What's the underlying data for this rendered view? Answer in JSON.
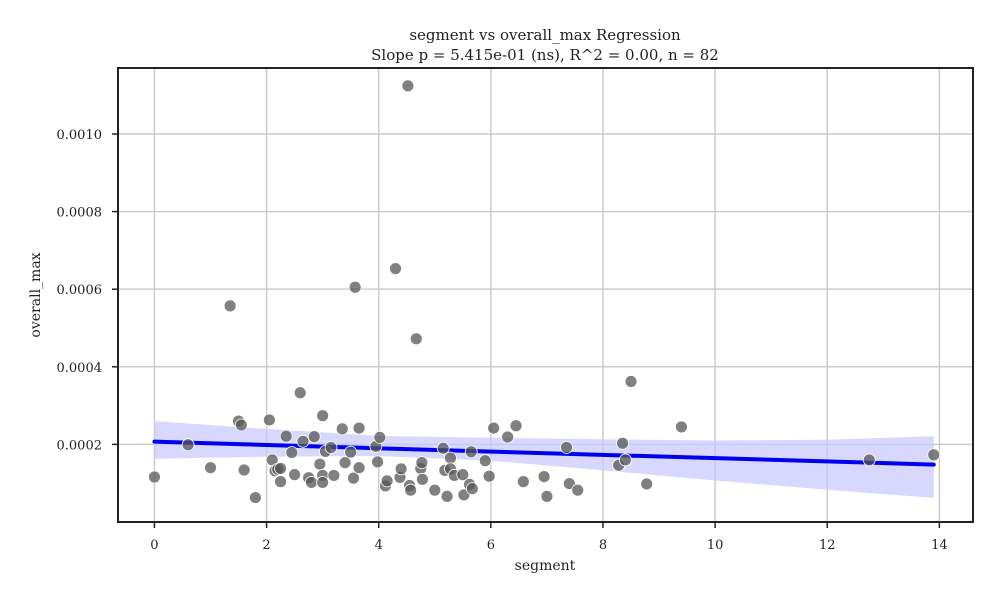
{
  "chart_data": {
    "type": "scatter",
    "title": "segment vs overall_max Regression",
    "subtitle": "Slope p = 5.415e-01 (ns), R^2 = 0.00, n = 82",
    "xlabel": "segment",
    "ylabel": "overall_max",
    "xlim": [
      -0.65,
      14.6
    ],
    "ylim": [
      0.0,
      0.00117
    ],
    "x_ticks": [
      0,
      2,
      4,
      6,
      8,
      10,
      12,
      14
    ],
    "x_tick_labels": [
      "0",
      "2",
      "4",
      "6",
      "8",
      "10",
      "12",
      "14"
    ],
    "y_ticks": [
      0.0002,
      0.0004,
      0.0006,
      0.0008,
      0.001
    ],
    "y_tick_labels": [
      "0.0002",
      "0.0004",
      "0.0006",
      "0.0008",
      "0.0010"
    ],
    "grid": true,
    "colors": {
      "points": "#555555",
      "regression_line": "#0000ee",
      "ci_band": "#c8c8ff"
    },
    "points": [
      [
        0.0,
        0.000116
      ],
      [
        0.6,
        0.000199
      ],
      [
        1.0,
        0.00014
      ],
      [
        1.35,
        0.000557
      ],
      [
        1.5,
        0.00026
      ],
      [
        1.55,
        0.00025
      ],
      [
        1.6,
        0.000134
      ],
      [
        1.8,
        6.3e-05
      ],
      [
        2.05,
        0.000263
      ],
      [
        2.1,
        0.00016
      ],
      [
        2.15,
        0.000132
      ],
      [
        2.2,
        0.000136
      ],
      [
        2.25,
        0.000104
      ],
      [
        2.25,
        0.000138
      ],
      [
        2.35,
        0.000221
      ],
      [
        2.45,
        0.000179
      ],
      [
        2.5,
        0.000122
      ],
      [
        2.6,
        0.000333
      ],
      [
        2.65,
        0.000208
      ],
      [
        2.75,
        0.000114
      ],
      [
        2.8,
        0.000102
      ],
      [
        2.85,
        0.00022
      ],
      [
        2.95,
        0.000149
      ],
      [
        3.0,
        0.000274
      ],
      [
        3.0,
        0.00012
      ],
      [
        3.0,
        0.000102
      ],
      [
        3.05,
        0.000182
      ],
      [
        3.15,
        0.000192
      ],
      [
        3.2,
        0.00012
      ],
      [
        3.35,
        0.00024
      ],
      [
        3.4,
        0.000153
      ],
      [
        3.5,
        0.00018
      ],
      [
        3.55,
        0.000113
      ],
      [
        3.58,
        0.000605
      ],
      [
        3.65,
        0.000242
      ],
      [
        3.65,
        0.00014
      ],
      [
        3.95,
        0.000195
      ],
      [
        3.98,
        0.000155
      ],
      [
        4.02,
        0.000218
      ],
      [
        4.12,
        9.3e-05
      ],
      [
        4.15,
        0.000106
      ],
      [
        4.3,
        0.000653
      ],
      [
        4.38,
        0.000115
      ],
      [
        4.4,
        0.000137
      ],
      [
        4.52,
        0.001124
      ],
      [
        4.55,
        9.4e-05
      ],
      [
        4.57,
        8.2e-05
      ],
      [
        4.67,
        0.000472
      ],
      [
        4.75,
        0.000138
      ],
      [
        4.77,
        0.000153
      ],
      [
        4.78,
        0.00011
      ],
      [
        5.0,
        8.2e-05
      ],
      [
        5.15,
        0.00019
      ],
      [
        5.18,
        0.000133
      ],
      [
        5.22,
        6.6e-05
      ],
      [
        5.28,
        0.000165
      ],
      [
        5.28,
        0.000137
      ],
      [
        5.35,
        0.00012
      ],
      [
        5.5,
        0.000122
      ],
      [
        5.52,
        7e-05
      ],
      [
        5.62,
        9.7e-05
      ],
      [
        5.65,
        0.000181
      ],
      [
        5.67,
        8.6e-05
      ],
      [
        5.9,
        0.000158
      ],
      [
        5.97,
        0.000118
      ],
      [
        6.05,
        0.000242
      ],
      [
        6.3,
        0.000219
      ],
      [
        6.45,
        0.000248
      ],
      [
        6.58,
        0.000104
      ],
      [
        6.95,
        0.000117
      ],
      [
        7.0,
        6.6e-05
      ],
      [
        7.35,
        0.000192
      ],
      [
        7.4,
        9.9e-05
      ],
      [
        7.55,
        8.2e-05
      ],
      [
        8.28,
        0.000146
      ],
      [
        8.35,
        0.000203
      ],
      [
        8.4,
        0.00016
      ],
      [
        8.5,
        0.000362
      ],
      [
        8.78,
        9.8e-05
      ],
      [
        9.4,
        0.000245
      ],
      [
        12.75,
        0.00016
      ],
      [
        13.9,
        0.000173
      ]
    ],
    "regression": {
      "x": [
        0.0,
        13.9
      ],
      "y": [
        0.000207,
        0.000148
      ]
    },
    "confidence_band": {
      "x": [
        0,
        2,
        4,
        6,
        8,
        10,
        12,
        13.9
      ],
      "lower": [
        0.000163,
        0.000168,
        0.00017,
        0.000158,
        0.000133,
        0.000107,
        8.3e-05,
        6.2e-05
      ],
      "upper": [
        0.00026,
        0.00024,
        0.000222,
        0.000217,
        0.000213,
        0.00021,
        0.000212,
        0.000221
      ]
    }
  }
}
